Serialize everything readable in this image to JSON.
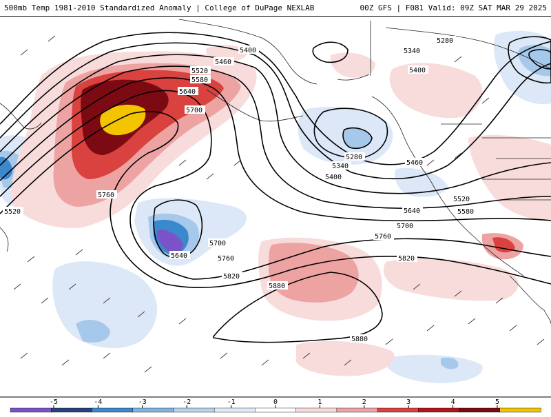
{
  "header": {
    "left": "500mb Temp 1981-2010 Standardized Anomaly | College of DuPage NEXLAB",
    "right": "00Z GFS | F081 Valid: 09Z SAT MAR 29 2025"
  },
  "contour_labels": [
    "5400",
    "5460",
    "5520",
    "5580",
    "5640",
    "5700",
    "5760",
    "5520",
    "5640",
    "5700",
    "5760",
    "5820",
    "5880",
    "5880",
    "5280",
    "5340",
    "5400",
    "5400",
    "5340",
    "5280",
    "5460",
    "5520",
    "5580",
    "5640",
    "5700",
    "5760",
    "5820"
  ],
  "colorbar": {
    "ticks": [
      "-5",
      "-4",
      "-3",
      "-2",
      "-1",
      "0",
      "1",
      "2",
      "3",
      "4",
      "5"
    ],
    "colors": [
      "#7b52c7",
      "#2a3f7c",
      "#3c88cc",
      "#7fb4e0",
      "#b9d2ee",
      "#e2ecf8",
      "#ffffff",
      "#f8dcdc",
      "#eea3a3",
      "#d9423f",
      "#b3141b",
      "#7c0a12",
      "#f2c500"
    ]
  },
  "colors": {
    "warm_core": "#7c0a12",
    "warm_mid": "#c52428",
    "warm_light": "#eea3a3",
    "warm_faint": "#f8dcdc",
    "cold_core": "#7b52c7",
    "cold_mid": "#3c88cc",
    "cold_light": "#a6c8ea",
    "cold_faint": "#dce8f7",
    "max": "#f2c500"
  }
}
